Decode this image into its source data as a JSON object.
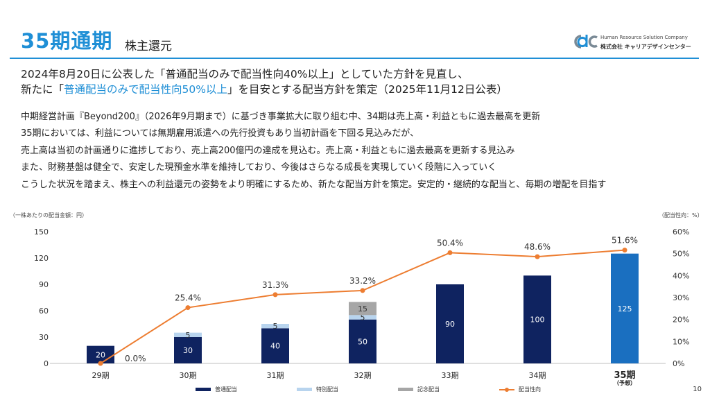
{
  "header": {
    "title": "35期通期",
    "subtitle": "株主還元",
    "logo_en": "Human Resource Solution Company",
    "logo_jp": "株式会社 キャリアデザインセンター"
  },
  "lead": {
    "line1": "2024年8月20日に公表した「普通配当のみで配当性向40%以上」としていた方針を見直し、",
    "line2_a": "新たに「",
    "line2_hl": "普通配当のみで配当性向50%以上",
    "line2_b": "」を目安とする配当方針を策定（2025年11月12日公表）"
  },
  "body": [
    "中期経営計画『Beyond200』（2026年9月期まで）に基づき事業拡大に取り組む中、34期は売上高・利益ともに過去最高を更新",
    "35期においては、利益については無期雇用派遣への先行投資もあり当初計画を下回る見込みだが、",
    "売上高は当初の計画通りに進捗しており、売上高200億円の達成を見込む。売上高・利益ともに過去最高を更新する見込み",
    "また、財務基盤は健全で、安定した現預金水準を維持しており、今後はさらなる成長を実現していく段階に入っていく",
    "こうした状況を踏まえ、株主への利益還元の姿勢をより明確にするため、新たな配当方針を策定。安定的・継続的な配当と、毎期の増配を目指す"
  ],
  "chart_data": {
    "type": "bar",
    "stacked": true,
    "categories": [
      "29期",
      "30期",
      "31期",
      "32期",
      "33期",
      "34期",
      "35期"
    ],
    "category_note": {
      "35期": "（予想）"
    },
    "series": [
      {
        "name": "普通配当",
        "values": [
          20,
          30,
          40,
          50,
          90,
          100,
          125
        ],
        "color": "#0f2360"
      },
      {
        "name": "特別配当",
        "values": [
          0,
          5,
          5,
          5,
          0,
          0,
          0
        ],
        "color": "#b8d4ee"
      },
      {
        "name": "記念配当",
        "values": [
          0,
          0,
          0,
          15,
          0,
          0,
          0
        ],
        "color": "#a6a6a6"
      }
    ],
    "line_series": {
      "name": "配当性向",
      "values": [
        0.0,
        25.4,
        31.3,
        33.2,
        50.4,
        48.6,
        51.6
      ],
      "labels": [
        "0.0%",
        "25.4%",
        "31.3%",
        "33.2%",
        "50.4%",
        "48.6%",
        "51.6%"
      ],
      "color": "#ed7d31"
    },
    "forecast_bar_color": "#1a6fc0",
    "y_left": {
      "label": "（一株あたりの配当金額：円）",
      "min": 0,
      "max": 150,
      "ticks": [
        0,
        30,
        60,
        90,
        120,
        150
      ]
    },
    "y_right": {
      "label": "（配当性向：%）",
      "min": 0,
      "max": 60,
      "ticks": [
        "0%",
        "10%",
        "20%",
        "30%",
        "40%",
        "50%",
        "60%"
      ]
    },
    "legend": [
      "普通配当",
      "特別配当",
      "記念配当",
      "配当性向"
    ]
  },
  "page_number": "10"
}
